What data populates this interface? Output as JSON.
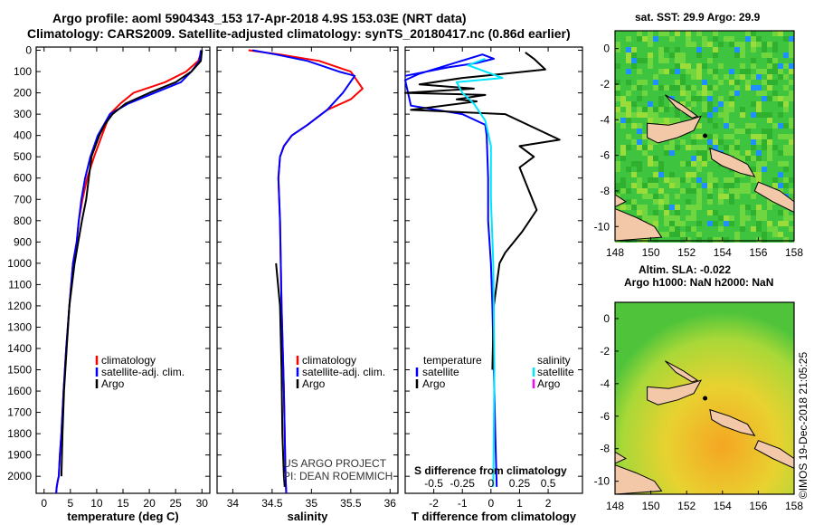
{
  "header": {
    "line1": "Argo profile: aoml 5904343_153 17-Apr-2018 4.9S 153.03E (NRT data)",
    "line2": "Climatology: CARS2009. Satellite-adjusted climatology: synTS_20180417.nc (0.86d earlier)"
  },
  "depth_ticks": [
    "0",
    "100",
    "200",
    "300",
    "400",
    "500",
    "600",
    "700",
    "800",
    "900",
    "1000",
    "1100",
    "1200",
    "1300",
    "1400",
    "1500",
    "1600",
    "1700",
    "1800",
    "1900",
    "2000"
  ],
  "colors": {
    "climatology": "#ff0000",
    "satellite": "#0000ff",
    "argo": "#000000",
    "sat_salinity": "#00e5ff",
    "argo_salinity": "#ff00ff",
    "land": "#f2c8a8"
  },
  "chart_data": [
    {
      "type": "line",
      "id": "temperature",
      "xlabel": "temperature (deg C)",
      "ylabel": "depth",
      "xlim": [
        -1.5,
        31.5
      ],
      "ylim": [
        2080,
        -15
      ],
      "xticks": [
        "0",
        "5",
        "10",
        "15",
        "20",
        "25",
        "30"
      ],
      "legend": [
        "climatology",
        "satellite-adj. clim.",
        "Argo"
      ],
      "series": [
        {
          "name": "climatology",
          "color": "#ff0000",
          "x": [
            30,
            29.3,
            27,
            23,
            17,
            14.5,
            12.5,
            11,
            9.5,
            8.2,
            7.3,
            6.6,
            6.2,
            5.5,
            4.8,
            4.2,
            3.7,
            3.3,
            3.0,
            2.8,
            2.6,
            2.4,
            2.3
          ],
          "y": [
            0,
            50,
            100,
            150,
            200,
            250,
            300,
            400,
            500,
            600,
            700,
            800,
            900,
            1000,
            1200,
            1400,
            1600,
            1800,
            1900,
            2000,
            2020,
            2050,
            2080
          ]
        },
        {
          "name": "satellite-adj. clim.",
          "color": "#0000ff",
          "x": [
            29.8,
            29.5,
            28,
            26,
            21,
            16,
            12.5,
            10.2,
            8.8,
            7.8,
            7.1,
            6.6,
            6.2,
            5.5,
            4.8,
            4.2,
            3.7,
            3.3,
            3.0,
            2.8,
            2.6,
            2.4,
            2.3
          ],
          "y": [
            0,
            50,
            100,
            150,
            200,
            250,
            300,
            400,
            500,
            600,
            700,
            800,
            900,
            1000,
            1200,
            1400,
            1600,
            1800,
            1900,
            2000,
            2020,
            2050,
            2080
          ]
        },
        {
          "name": "Argo",
          "color": "#000000",
          "x": [
            30,
            29.8,
            28,
            25,
            20,
            15.5,
            13,
            11.5,
            10.5,
            9.0,
            8.5,
            8.0,
            7.2,
            6.5,
            5.8,
            5.3,
            4.8,
            4.3,
            3.8,
            3.5,
            3.3
          ],
          "y": [
            0,
            50,
            100,
            150,
            200,
            250,
            300,
            350,
            400,
            500,
            600,
            700,
            800,
            900,
            1000,
            1100,
            1200,
            1400,
            1600,
            1800,
            2000
          ]
        }
      ]
    },
    {
      "type": "line",
      "id": "salinity",
      "xlabel": "salinity",
      "ylabel": "depth",
      "xlim": [
        33.8,
        36.1
      ],
      "ylim": [
        2080,
        -15
      ],
      "xticks": [
        "34",
        "34.5",
        "35",
        "35.5",
        "36"
      ],
      "legend": [
        "climatology",
        "satellite-adj. clim.",
        "Argo"
      ],
      "series": [
        {
          "name": "climatology",
          "color": "#ff0000",
          "x": [
            34.2,
            34.6,
            35.1,
            35.5,
            35.65,
            35.5,
            35.2,
            34.95,
            34.75,
            34.65,
            34.6,
            34.58,
            34.6,
            34.62,
            34.65,
            34.67,
            34.68
          ],
          "y": [
            0,
            20,
            50,
            100,
            180,
            230,
            280,
            350,
            400,
            450,
            500,
            600,
            800,
            1200,
            1600,
            2000,
            2080
          ]
        },
        {
          "name": "satellite-adj. clim.",
          "color": "#0000ff",
          "x": [
            34.25,
            34.55,
            34.95,
            35.35,
            35.55,
            35.4,
            35.2,
            34.95,
            34.75,
            34.65,
            34.6,
            34.58,
            34.6,
            34.62,
            34.65,
            34.67,
            34.68
          ],
          "y": [
            0,
            20,
            50,
            100,
            120,
            200,
            280,
            350,
            400,
            450,
            500,
            600,
            800,
            1200,
            1600,
            2000,
            2080
          ]
        },
        {
          "name": "Argo",
          "color": "#000000",
          "x": [
            34.55,
            34.6,
            34.62,
            34.63,
            34.65,
            34.66
          ],
          "y": [
            1000,
            1200,
            1500,
            1800,
            2000,
            2050
          ]
        }
      ],
      "credit": [
        "US ARGO PROJECT",
        "PI: DEAN ROEMMICH"
      ]
    },
    {
      "type": "line",
      "id": "differences",
      "xlabel": "T difference from climatology",
      "xlabel_top": "S difference from climatology",
      "ylim": [
        2080,
        -15
      ],
      "xlim": [
        -3,
        3.2
      ],
      "xticks": [
        "-2",
        "-1",
        "0",
        "1",
        "2"
      ],
      "xlim_s": [
        -0.75,
        0.8
      ],
      "xticks_s": [
        "-0.5",
        "-0.25",
        "0",
        "0.25",
        "0.5"
      ],
      "legend_left_title": "temperature",
      "legend_right_title": "salinity",
      "legend_left": [
        "satellite",
        "Argo"
      ],
      "legend_right": [
        "satellite",
        "Argo"
      ],
      "series": [
        {
          "name": "T satellite",
          "color": "#0000ff",
          "scale": "T",
          "x": [
            -3,
            -1.5,
            -0.5,
            0.1,
            -0.3,
            -2.5,
            -3,
            -2.8,
            -1.0,
            -0.2,
            -0.15,
            -0.1,
            -0.1,
            0,
            0.05,
            0.1,
            0.15,
            0.2
          ],
          "y": [
            120,
            80,
            60,
            40,
            20,
            110,
            140,
            260,
            300,
            350,
            400,
            600,
            800,
            1000,
            1200,
            1500,
            1800,
            2050
          ]
        },
        {
          "name": "T Argo",
          "color": "#000000",
          "scale": "T",
          "x": [
            1.2,
            1.5,
            1.9,
            0.5,
            -1.0,
            -2.5,
            -0.6,
            -3.0,
            -0.2,
            -1.2,
            -0.5,
            -2.8,
            0.5,
            2.4,
            1.0,
            1.5,
            1.0,
            1.3,
            1.6,
            1.1,
            0.5,
            0.3,
            0.1,
            0.05
          ],
          "y": [
            10,
            40,
            90,
            110,
            130,
            160,
            180,
            200,
            210,
            230,
            240,
            280,
            300,
            420,
            450,
            500,
            550,
            650,
            750,
            850,
            950,
            1000,
            1200,
            1500
          ]
        },
        {
          "name": "S satellite",
          "color": "#00e5ff",
          "scale": "S",
          "x": [
            -0.05,
            -0.2,
            0.1,
            -0.3,
            -0.25,
            -0.15,
            -0.05,
            0,
            0,
            0.02,
            0.03,
            0.02
          ],
          "y": [
            40,
            70,
            130,
            150,
            200,
            250,
            330,
            450,
            700,
            1000,
            1500,
            2050
          ]
        }
      ]
    }
  ],
  "maps": {
    "sst": {
      "title": "sat. SST: 29.9 Argo: 29.9",
      "xticks": [
        "148",
        "150",
        "152",
        "154",
        "156",
        "158"
      ],
      "yticks": [
        "0",
        "-2",
        "-4",
        "-6",
        "-8",
        "-10"
      ]
    },
    "sla": {
      "title_line1": "Altim. SLA: -0.022",
      "title_line2": "Argo h1000: NaN h2000: NaN",
      "xticks": [
        "148",
        "150",
        "152",
        "154",
        "156",
        "158"
      ],
      "yticks": [
        "0",
        "-2",
        "-4",
        "-6",
        "-8",
        "-10"
      ]
    }
  },
  "credit": "©IMOS 19-Dec-2018 21:05:25"
}
